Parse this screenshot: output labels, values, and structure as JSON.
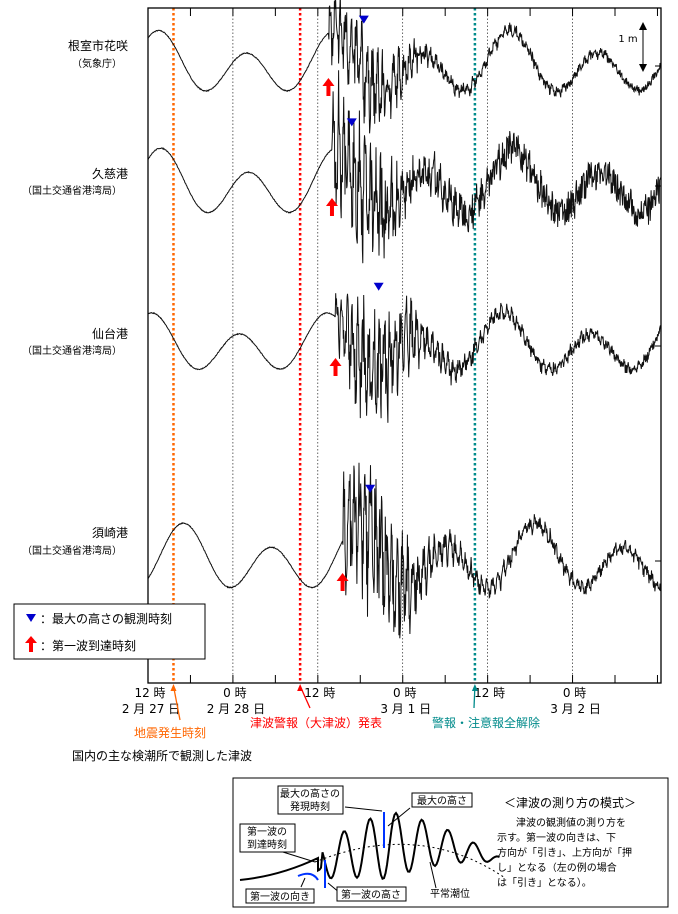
{
  "chart_data": {
    "type": "line",
    "title": "国内の主な検潮所で観測した津波",
    "x_unit": "hours since 2月27日 12時",
    "xlim": [
      0,
      72.5
    ],
    "x_ticks": [
      {
        "t": 0,
        "time": "12 時",
        "date": "2 月 27 日"
      },
      {
        "t": 12,
        "time": "0 時",
        "date": "2 月 28 日"
      },
      {
        "t": 24,
        "time": "12 時",
        "date": ""
      },
      {
        "t": 36,
        "time": "0 時",
        "date": "3 月 1 日"
      },
      {
        "t": 48,
        "time": "12 時",
        "date": ""
      },
      {
        "t": 60,
        "time": "0 時",
        "date": "3 月 2 日"
      }
    ],
    "scale_label": "1 m",
    "events": [
      {
        "t": 3.6,
        "label": "地震発生時刻",
        "color": "#ff6600"
      },
      {
        "t": 21.5,
        "label": "津波警報（大津波）発表",
        "color": "#ff0000"
      },
      {
        "t": 46.2,
        "label": "警報・注意報全解除",
        "color": "#008b8b"
      }
    ],
    "series": [
      {
        "name": "根室市花咲",
        "agency": "（気象庁）",
        "arrival_t": 25.5,
        "max_t": 30.5,
        "tide_amp_m": 0.75,
        "tsunami_amp_m": 0.8,
        "phase": 1.5,
        "noise": 0.08
      },
      {
        "name": "久慈港",
        "agency": "（国土交通省港湾局）",
        "arrival_t": 26.0,
        "max_t": 28.8,
        "tide_amp_m": 0.8,
        "tsunami_amp_m": 1.2,
        "phase": 1.8,
        "noise": 0.35
      },
      {
        "name": "仙台港",
        "agency": "（国土交通省港湾局）",
        "arrival_t": 26.5,
        "max_t": 32.6,
        "tide_amp_m": 0.7,
        "tsunami_amp_m": 1.1,
        "phase": 0.5,
        "noise": 0.1
      },
      {
        "name": "須崎港",
        "agency": "（国土交通省港湾局）",
        "arrival_t": 27.5,
        "max_t": 31.4,
        "tide_amp_m": 0.8,
        "tsunami_amp_m": 1.4,
        "phase": 5.0,
        "noise": 0.1
      }
    ],
    "legend": {
      "max": "：最大の高さの観測時刻",
      "first": "：第一波到達時刻"
    },
    "legend_position": "bottom-left"
  },
  "diagram": {
    "title": "＜津波の測り方の模式＞",
    "desc": [
      "津波の観測値の測り方を",
      "示す。第一波の向きは、下",
      "方向が「引き」、上方向が「押",
      "し」となる（左の例の場合",
      "は「引き」となる）。"
    ],
    "labels": {
      "max_time": [
        "最大の高さの",
        "発現時刻"
      ],
      "max_height": "最大の高さ",
      "first_time": [
        "第一波の",
        "到達時刻"
      ],
      "first_dir": "第一波の向き",
      "first_height": "第一波の高さ",
      "normal": "平常潮位"
    }
  }
}
